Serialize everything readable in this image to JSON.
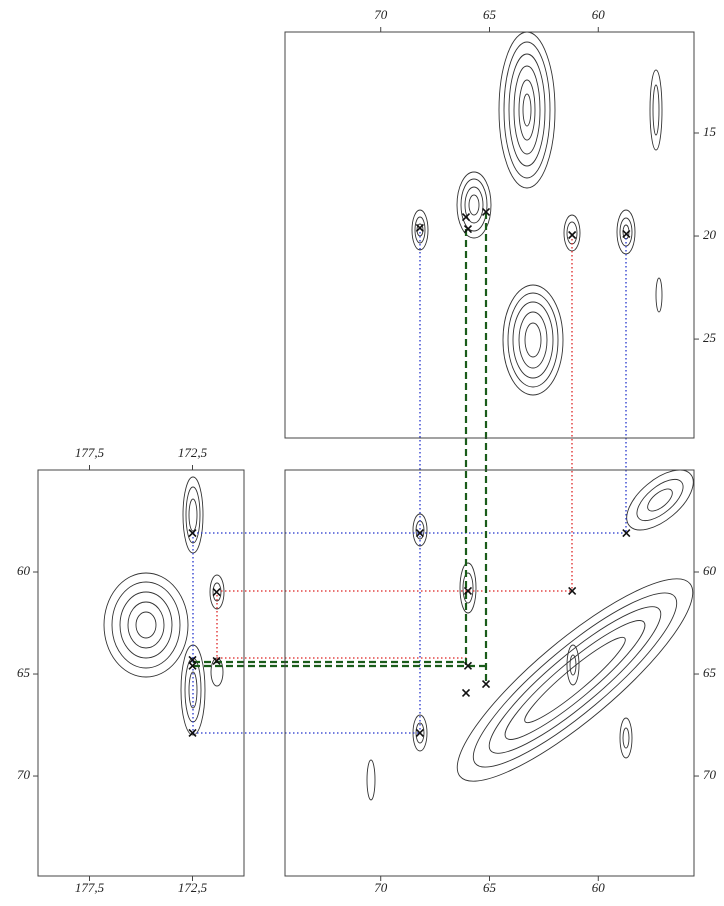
{
  "chart_data": [
    {
      "type": "scatter",
      "xlim": [
        74.4,
        55.6
      ],
      "ylim": [
        10.1,
        29.8
      ],
      "xticks": [
        70,
        65,
        60
      ],
      "yticks": [
        15,
        20,
        25
      ],
      "x": [
        68.2,
        66.08,
        65.99,
        65.16,
        61.2,
        58.71
      ],
      "y": [
        19.61,
        19.08,
        19.66,
        18.83,
        19.95,
        19.9
      ],
      "color": "#111111"
    },
    {
      "type": "scatter",
      "xlim": [
        180,
        170
      ],
      "ylim": [
        55,
        74.9
      ],
      "xticks": [
        {
          "value": 177.5,
          "label": "177,5"
        },
        {
          "value": 172.5,
          "label": "172,5"
        }
      ],
      "yticks": [
        60,
        65,
        70
      ],
      "x": [
        172.5,
        171.33,
        172.5,
        172.5,
        171.33,
        172.5
      ],
      "y": [
        58.09,
        60.98,
        64.31,
        64.6,
        64.36,
        67.89
      ],
      "color": "#111111"
    },
    {
      "type": "scatter",
      "xlim": [
        74.4,
        55.6
      ],
      "ylim": [
        55,
        74.9
      ],
      "xticks": [
        70,
        65,
        60
      ],
      "yticks": [
        60,
        65,
        70
      ],
      "x": [
        68.2,
        58.71,
        65.99,
        61.2,
        65.99,
        66.08,
        65.16,
        68.2
      ],
      "y": [
        58.09,
        58.09,
        60.93,
        60.93,
        64.6,
        65.93,
        65.49,
        67.89
      ],
      "color": "#111111"
    }
  ]
}
